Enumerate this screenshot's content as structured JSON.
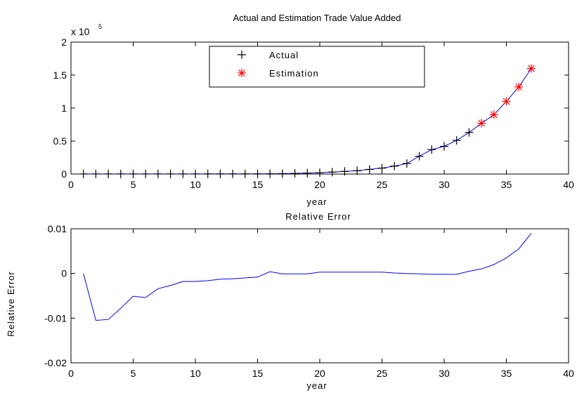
{
  "chart_data": [
    {
      "type": "line",
      "title": "Actual and Estimation Trade Value Added",
      "xlabel": "year",
      "ylabel": "",
      "y_exponent_label": "x 10",
      "y_exponent": "5",
      "xlim": [
        0,
        40
      ],
      "ylim": [
        0,
        2
      ],
      "x_ticks": [
        0,
        5,
        10,
        15,
        20,
        25,
        30,
        35,
        40
      ],
      "y_ticks": [
        0,
        0.5,
        1,
        1.5,
        2
      ],
      "x_tick_labels": [
        "0",
        "5",
        "10",
        "15",
        "20",
        "25",
        "30",
        "35",
        "40"
      ],
      "y_tick_labels": [
        "0",
        "0.5",
        "1",
        "1.5",
        "2"
      ],
      "grid": false,
      "legend": {
        "position": "top-center",
        "entries": [
          "Actual",
          "Estimation"
        ]
      },
      "colors": {
        "line": "#0000ff",
        "actual_marker": "#000000",
        "estimation_marker": "#ff0000"
      },
      "series": [
        {
          "name": "Actual",
          "marker": "+",
          "x": [
            1,
            2,
            3,
            4,
            5,
            6,
            7,
            8,
            9,
            10,
            11,
            12,
            13,
            14,
            15,
            16,
            17,
            18,
            19,
            20,
            21,
            22,
            23,
            24,
            25,
            26,
            27,
            28,
            29,
            30,
            31,
            32
          ],
          "y": [
            0.001,
            0.001,
            0.001,
            0.001,
            0.001,
            0.001,
            0.001,
            0.001,
            0.001,
            0.001,
            0.002,
            0.002,
            0.002,
            0.002,
            0.003,
            0.004,
            0.006,
            0.01,
            0.015,
            0.02,
            0.03,
            0.04,
            0.05,
            0.07,
            0.09,
            0.12,
            0.16,
            0.27,
            0.37,
            0.42,
            0.51,
            0.63
          ]
        },
        {
          "name": "Estimation",
          "marker": "*",
          "x": [
            33,
            34,
            35,
            36,
            37
          ],
          "y": [
            0.77,
            0.9,
            1.1,
            1.32,
            1.6
          ]
        }
      ]
    },
    {
      "type": "line",
      "title": "Relative Error",
      "xlabel": "year",
      "ylabel": "Relative Error",
      "xlim": [
        0,
        40
      ],
      "ylim": [
        -0.02,
        0.01
      ],
      "x_ticks": [
        0,
        5,
        10,
        15,
        20,
        25,
        30,
        35,
        40
      ],
      "y_ticks": [
        -0.02,
        -0.01,
        0,
        0.01
      ],
      "x_tick_labels": [
        "0",
        "5",
        "10",
        "15",
        "20",
        "25",
        "30",
        "35",
        "40"
      ],
      "y_tick_labels": [
        "-0.02",
        "-0.01",
        "0",
        "0.01"
      ],
      "grid": false,
      "colors": {
        "line": "#0000ff"
      },
      "x": [
        1,
        2,
        3,
        4,
        5,
        6,
        7,
        8,
        9,
        10,
        11,
        12,
        13,
        14,
        15,
        16,
        17,
        18,
        19,
        20,
        21,
        22,
        23,
        24,
        25,
        26,
        27,
        28,
        29,
        30,
        31,
        32,
        33,
        34,
        35,
        36,
        37
      ],
      "values": [
        0,
        -0.0105,
        -0.0103,
        -0.0078,
        -0.0051,
        -0.0054,
        -0.0034,
        -0.0027,
        -0.0018,
        -0.0018,
        -0.0016,
        -0.0013,
        -0.0012,
        -0.001,
        -0.0008,
        0.0004,
        -0.0001,
        -0.0001,
        -0.0001,
        0.0003,
        0.0003,
        0.0003,
        0.0003,
        0.0003,
        0.0003,
        0.0001,
        0,
        -0.0001,
        -0.0002,
        -0.0002,
        -0.0002,
        0.0005,
        0.001,
        0.002,
        0.0035,
        0.0055,
        0.009
      ]
    }
  ]
}
